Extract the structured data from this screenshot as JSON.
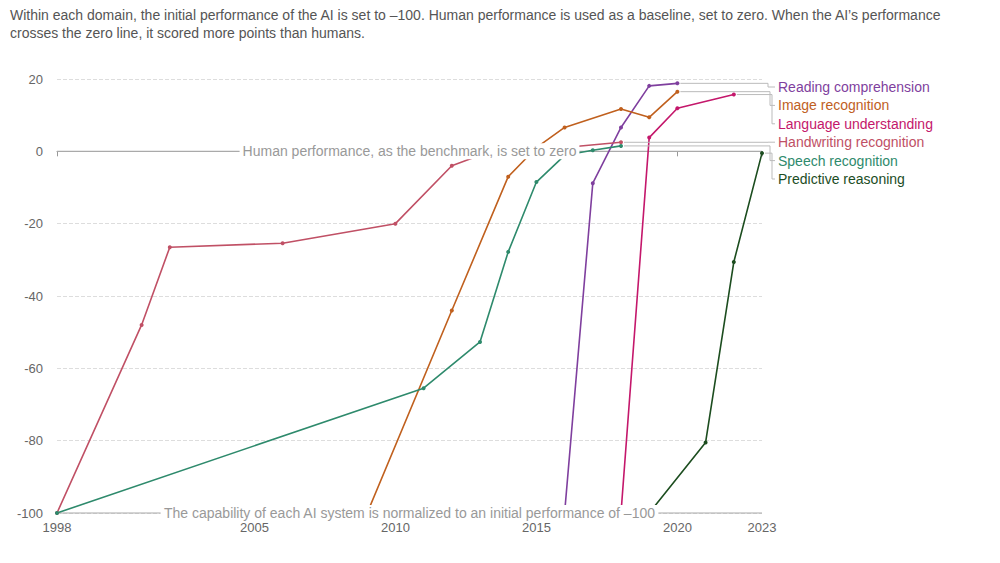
{
  "chart_data": {
    "type": "line",
    "subtitle": "Within each domain, the initial performance of the AI is set to –100. Human performance is used as a baseline, set to zero. When the AI’s performance crosses the zero line, it scored more points than humans.",
    "xlim": [
      1998,
      2023
    ],
    "xticks": [
      1998,
      2005,
      2010,
      2015,
      2020,
      2023
    ],
    "ylim": [
      -100,
      20
    ],
    "yticks": [
      -100,
      -80,
      -60,
      -40,
      -20,
      0,
      20
    ],
    "grid": true,
    "marker": "circle",
    "annotations": [
      {
        "text": "Human performance, as the benchmark, is set to zero",
        "y": 0
      },
      {
        "text": "The capability of each AI system is normalized to an initial performance of –100",
        "y": -100
      }
    ],
    "series": [
      {
        "name": "Reading comprehension",
        "color": "#7f3f9e",
        "x": [
          2016,
          2017,
          2018,
          2019,
          2020
        ],
        "values": [
          -100,
          -8.8,
          6.6,
          18.1,
          18.8
        ]
      },
      {
        "name": "Image recognition",
        "color": "#c0601e",
        "x": [
          2009,
          2012,
          2014,
          2015,
          2016,
          2018,
          2019,
          2020
        ],
        "values": [
          -100,
          -44,
          -7,
          1,
          6.6,
          11.7,
          9.4,
          16.5
        ]
      },
      {
        "name": "Language understanding",
        "color": "#c4176b",
        "x": [
          2018,
          2019,
          2020,
          2022
        ],
        "values": [
          -100,
          3.8,
          11.9,
          15.7
        ]
      },
      {
        "name": "Handwriting recognition",
        "color": "#c05065",
        "x": [
          1998,
          2001,
          2002,
          2006,
          2010,
          2012,
          2013,
          2018
        ],
        "values": [
          -100,
          -48,
          -26.5,
          -25.4,
          -20,
          -4,
          -1.1,
          2.5
        ]
      },
      {
        "name": "Speech recognition",
        "color": "#2e8a6c",
        "x": [
          1998,
          2011,
          2013,
          2014,
          2015,
          2016,
          2017,
          2018
        ],
        "values": [
          -100,
          -65.5,
          -52.7,
          -27.8,
          -8.5,
          -1.1,
          0.3,
          1.5
        ]
      },
      {
        "name": "Predictive reasoning",
        "color": "#1c4d1f",
        "x": [
          2019,
          2021,
          2022,
          2023
        ],
        "values": [
          -100,
          -80.5,
          -30.6,
          -0.5
        ]
      }
    ]
  }
}
